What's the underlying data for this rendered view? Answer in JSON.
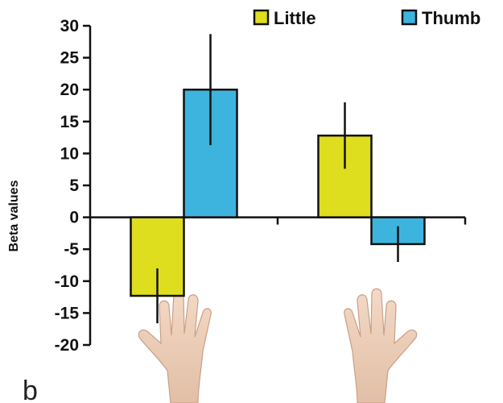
{
  "panel_label": "b",
  "chart_data": {
    "type": "bar",
    "categories": [
      "",
      ""
    ],
    "ylabel": "Beta values",
    "xlabel": "",
    "title": "",
    "ylim": [
      -20,
      30
    ],
    "yticks": [
      30,
      25,
      20,
      15,
      10,
      5,
      0,
      -5,
      -10,
      -15,
      -20
    ],
    "grid": false,
    "legend_position": "top-right",
    "series": [
      {
        "name": "Little",
        "color": "#dede1e",
        "values": [
          -12.3,
          12.8
        ],
        "errors": [
          4.3,
          5.2
        ]
      },
      {
        "name": "Thumb",
        "color": "#3db4de",
        "values": [
          20.0,
          -4.2
        ],
        "errors": [
          8.7,
          2.8
        ]
      }
    ],
    "illustrations": [
      "left-hand-icon",
      "right-hand-icon"
    ]
  }
}
